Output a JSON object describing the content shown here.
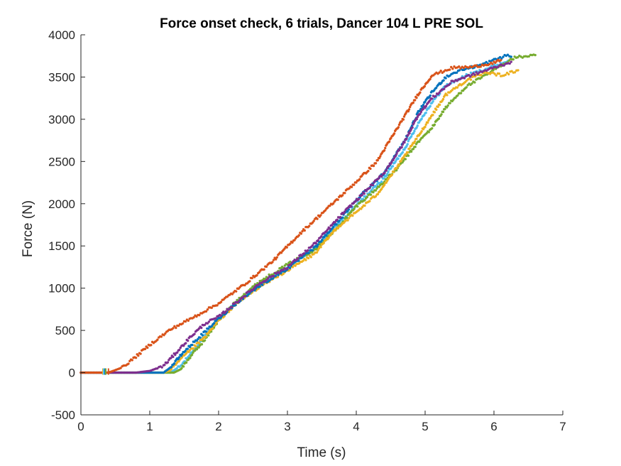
{
  "chart_data": {
    "type": "scatter",
    "title": "Force onset check, 6 trials, Dancer 104 L PRE SOL",
    "xlabel": "Time (s)",
    "ylabel": "Force (N)",
    "xlim": [
      0,
      7
    ],
    "ylim": [
      -500,
      4000
    ],
    "xticks": [
      0,
      1,
      2,
      3,
      4,
      5,
      6,
      7
    ],
    "yticks": [
      -500,
      0,
      500,
      1000,
      1500,
      2000,
      2500,
      3000,
      3500,
      4000
    ],
    "grid": false,
    "legend": "none",
    "series": [
      {
        "color": "#0072BD",
        "onset": 0.35,
        "points": [
          [
            0,
            0
          ],
          [
            1.2,
            0
          ],
          [
            1.3,
            60
          ],
          [
            1.5,
            250
          ],
          [
            1.8,
            480
          ],
          [
            2.0,
            640
          ],
          [
            2.3,
            850
          ],
          [
            2.6,
            1030
          ],
          [
            3.0,
            1230
          ],
          [
            3.4,
            1480
          ],
          [
            3.8,
            1850
          ],
          [
            4.1,
            2130
          ],
          [
            4.4,
            2360
          ],
          [
            4.7,
            2740
          ],
          [
            4.9,
            3080
          ],
          [
            5.1,
            3320
          ],
          [
            5.3,
            3500
          ],
          [
            5.5,
            3580
          ],
          [
            5.8,
            3640
          ],
          [
            6.0,
            3700
          ],
          [
            6.2,
            3760
          ],
          [
            6.25,
            3740
          ]
        ]
      },
      {
        "color": "#D95319",
        "onset": 0.4,
        "points": [
          [
            0,
            0
          ],
          [
            0.4,
            0
          ],
          [
            0.6,
            60
          ],
          [
            0.8,
            190
          ],
          [
            1.0,
            330
          ],
          [
            1.3,
            510
          ],
          [
            1.6,
            640
          ],
          [
            2.0,
            820
          ],
          [
            2.4,
            1060
          ],
          [
            2.8,
            1330
          ],
          [
            3.2,
            1660
          ],
          [
            3.6,
            1960
          ],
          [
            4.0,
            2260
          ],
          [
            4.3,
            2500
          ],
          [
            4.6,
            2900
          ],
          [
            4.9,
            3300
          ],
          [
            5.1,
            3520
          ],
          [
            5.4,
            3610
          ],
          [
            5.7,
            3620
          ],
          [
            6.0,
            3670
          ],
          [
            6.1,
            3700
          ]
        ]
      },
      {
        "color": "#EDB120",
        "onset": 0.32,
        "points": [
          [
            0,
            0
          ],
          [
            1.2,
            0
          ],
          [
            1.3,
            30
          ],
          [
            1.5,
            200
          ],
          [
            1.8,
            420
          ],
          [
            2.0,
            620
          ],
          [
            2.3,
            840
          ],
          [
            2.6,
            1020
          ],
          [
            3.0,
            1210
          ],
          [
            3.4,
            1410
          ],
          [
            3.7,
            1700
          ],
          [
            4.0,
            1900
          ],
          [
            4.3,
            2110
          ],
          [
            4.6,
            2440
          ],
          [
            4.9,
            2800
          ],
          [
            5.1,
            3050
          ],
          [
            5.3,
            3290
          ],
          [
            5.6,
            3460
          ],
          [
            5.9,
            3560
          ],
          [
            6.1,
            3520
          ],
          [
            6.35,
            3580
          ]
        ]
      },
      {
        "color": "#7E2F8E",
        "onset": 0.36,
        "points": [
          [
            0,
            0
          ],
          [
            0.8,
            0
          ],
          [
            1.0,
            20
          ],
          [
            1.2,
            80
          ],
          [
            1.4,
            250
          ],
          [
            1.6,
            430
          ],
          [
            1.8,
            580
          ],
          [
            2.0,
            660
          ],
          [
            2.3,
            860
          ],
          [
            2.6,
            1060
          ],
          [
            3.0,
            1250
          ],
          [
            3.4,
            1530
          ],
          [
            3.8,
            1880
          ],
          [
            4.1,
            2120
          ],
          [
            4.4,
            2360
          ],
          [
            4.7,
            2730
          ],
          [
            4.9,
            3050
          ],
          [
            5.1,
            3250
          ],
          [
            5.4,
            3450
          ],
          [
            5.7,
            3530
          ],
          [
            6.0,
            3610
          ],
          [
            6.25,
            3680
          ]
        ]
      },
      {
        "color": "#77AC30",
        "onset": 0.36,
        "points": [
          [
            0,
            0
          ],
          [
            1.35,
            0
          ],
          [
            1.45,
            40
          ],
          [
            1.6,
            200
          ],
          [
            1.8,
            390
          ],
          [
            2.0,
            620
          ],
          [
            2.3,
            880
          ],
          [
            2.6,
            1080
          ],
          [
            3.0,
            1280
          ],
          [
            3.4,
            1460
          ],
          [
            3.7,
            1690
          ],
          [
            4.0,
            1970
          ],
          [
            4.3,
            2180
          ],
          [
            4.6,
            2420
          ],
          [
            4.9,
            2730
          ],
          [
            5.1,
            2900
          ],
          [
            5.3,
            3140
          ],
          [
            5.6,
            3390
          ],
          [
            5.9,
            3530
          ],
          [
            6.1,
            3640
          ],
          [
            6.3,
            3730
          ],
          [
            6.6,
            3760
          ]
        ]
      },
      {
        "color": "#4DBEEE",
        "onset": 0.33,
        "points": [
          [
            0,
            0
          ],
          [
            1.3,
            0
          ],
          [
            1.45,
            80
          ],
          [
            1.6,
            230
          ],
          [
            1.8,
            430
          ],
          [
            2.0,
            640
          ],
          [
            2.3,
            860
          ],
          [
            2.6,
            1050
          ],
          [
            3.0,
            1250
          ],
          [
            3.4,
            1470
          ],
          [
            3.8,
            1810
          ],
          [
            4.1,
            2060
          ],
          [
            4.4,
            2300
          ],
          [
            4.7,
            2650
          ],
          [
            4.9,
            2950
          ],
          [
            5.1,
            3200
          ],
          [
            5.3,
            3400
          ],
          [
            5.6,
            3520
          ],
          [
            5.9,
            3600
          ],
          [
            6.2,
            3690
          ]
        ]
      }
    ]
  }
}
